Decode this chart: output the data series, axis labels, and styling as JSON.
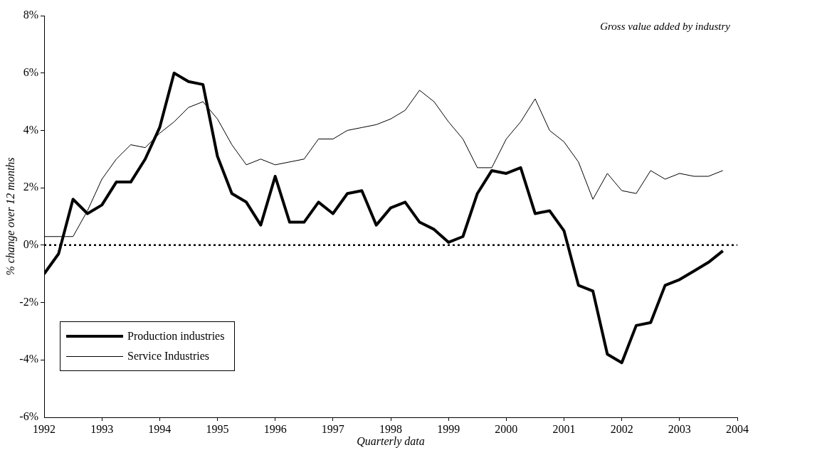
{
  "chart_data": {
    "type": "line",
    "title": "Gross value added by industry",
    "xlabel": "Quarterly data",
    "ylabel": "% change over 12 months",
    "x": [
      1992,
      1992.25,
      1992.5,
      1992.75,
      1993,
      1993.25,
      1993.5,
      1993.75,
      1994,
      1994.25,
      1994.5,
      1994.75,
      1995,
      1995.25,
      1995.5,
      1995.75,
      1996,
      1996.25,
      1996.5,
      1996.75,
      1997,
      1997.25,
      1997.5,
      1997.75,
      1998,
      1998.25,
      1998.5,
      1998.75,
      1999,
      1999.25,
      1999.5,
      1999.75,
      2000,
      2000.25,
      2000.5,
      2000.75,
      2001,
      2001.25,
      2001.5,
      2001.75,
      2002,
      2002.25,
      2002.5,
      2002.75,
      2003,
      2003.25,
      2003.5,
      2003.75
    ],
    "series": [
      {
        "name": "Production industries",
        "color": "#000000",
        "values": [
          -1.0,
          -0.3,
          1.6,
          1.1,
          1.4,
          2.2,
          2.2,
          3.0,
          4.1,
          6.0,
          5.7,
          5.6,
          3.1,
          1.8,
          1.5,
          0.7,
          2.4,
          0.8,
          0.8,
          1.5,
          1.1,
          1.8,
          1.9,
          0.7,
          1.3,
          1.5,
          0.8,
          0.55,
          0.1,
          0.3,
          1.8,
          2.6,
          2.5,
          2.7,
          1.1,
          1.2,
          0.5,
          -1.4,
          -1.6,
          -3.8,
          -4.1,
          -2.8,
          -2.7,
          -1.4,
          -1.2,
          -0.9,
          -0.6,
          -0.2
        ]
      },
      {
        "name": "Service Industries",
        "color": "#000000",
        "values": [
          0.3,
          0.3,
          0.3,
          1.2,
          2.3,
          3.0,
          3.5,
          3.4,
          3.9,
          4.3,
          4.8,
          5.0,
          4.4,
          3.5,
          2.8,
          3.0,
          2.8,
          2.9,
          3.0,
          3.7,
          3.7,
          4.0,
          4.1,
          4.2,
          4.4,
          4.7,
          5.4,
          5.0,
          4.3,
          3.7,
          2.7,
          2.7,
          3.7,
          4.3,
          5.1,
          4.0,
          3.6,
          2.9,
          1.6,
          2.5,
          1.9,
          1.8,
          2.6,
          2.3,
          2.5,
          2.4,
          2.4,
          2.6
        ]
      }
    ],
    "xlim": [
      1992,
      2004
    ],
    "xticks": [
      1992,
      1993,
      1994,
      1995,
      1996,
      1997,
      1998,
      1999,
      2000,
      2001,
      2002,
      2003,
      2004
    ],
    "ylim": [
      -6,
      8
    ],
    "yticks": [
      {
        "value": -6,
        "label": "-6%"
      },
      {
        "value": -4,
        "label": "-4%"
      },
      {
        "value": -2,
        "label": "-2%"
      },
      {
        "value": 0,
        "label": "0%"
      },
      {
        "value": 2,
        "label": "2%"
      },
      {
        "value": 4,
        "label": "4%"
      },
      {
        "value": 6,
        "label": "6%"
      },
      {
        "value": 8,
        "label": "8%"
      }
    ],
    "ref_lines": [
      {
        "axis": "y",
        "value": 0,
        "color": "#000000",
        "line_style": "dotted"
      }
    ],
    "grid": false,
    "legend": "bottom left",
    "marker": "none",
    "line_style": "solid"
  }
}
